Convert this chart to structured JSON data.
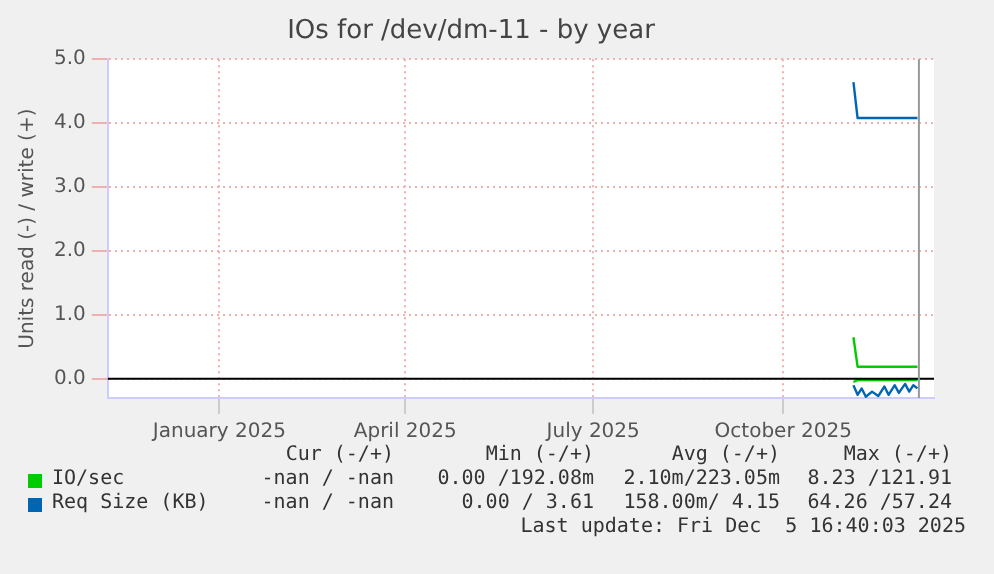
{
  "chart_data": {
    "type": "line",
    "title": "IOs for /dev/dm-11 - by year",
    "ylabel": "Units read (-) / write (+)",
    "xlim": [
      "2024-11-08",
      "2025-12-13"
    ],
    "xticks": [
      {
        "value": "2025-01-01",
        "label": "January 2025"
      },
      {
        "value": "2025-04-01",
        "label": "April 2025"
      },
      {
        "value": "2025-07-01",
        "label": "July 2025"
      },
      {
        "value": "2025-10-01",
        "label": "October 2025"
      }
    ],
    "ylim": [
      -0.3,
      5.0
    ],
    "yticks": [
      {
        "value": 0,
        "label": "0.0"
      },
      {
        "value": 1,
        "label": "1.0"
      },
      {
        "value": 2,
        "label": "2.0"
      },
      {
        "value": 3,
        "label": "3.0"
      },
      {
        "value": 4,
        "label": "4.0"
      },
      {
        "value": 5,
        "label": "5.0"
      }
    ],
    "grid": true,
    "legend": "bottom",
    "marker": "none",
    "line_style": "solid",
    "series": [
      {
        "name": "IO/sec",
        "color": "#00cc00",
        "x": [
          "2025-11-04",
          "2025-11-06",
          "2025-12-05"
        ],
        "values": [
          0.65,
          0.19,
          0.19
        ]
      },
      {
        "color": "#00cc00",
        "x": [
          "2025-11-04",
          "2025-11-06",
          "2025-12-05"
        ],
        "values": [
          -0.05,
          -0.02,
          -0.02
        ]
      },
      {
        "name": "Req Size (KB)",
        "color": "#0066b3",
        "x": [
          "2025-11-04",
          "2025-11-06",
          "2025-12-05"
        ],
        "values": [
          4.64,
          4.08,
          4.08
        ]
      },
      {
        "color": "#0066b3",
        "x": [
          "2025-11-04",
          "2025-11-06",
          "2025-11-08",
          "2025-11-10",
          "2025-11-13",
          "2025-11-16",
          "2025-11-19",
          "2025-11-21",
          "2025-11-24",
          "2025-11-26",
          "2025-11-29",
          "2025-12-01",
          "2025-12-03",
          "2025-12-05"
        ],
        "values": [
          -0.1,
          -0.25,
          -0.15,
          -0.28,
          -0.2,
          -0.27,
          -0.12,
          -0.25,
          -0.1,
          -0.22,
          -0.08,
          -0.2,
          -0.1,
          -0.15
        ]
      }
    ],
    "ref_lines": [
      {
        "axis": "y",
        "value": 0,
        "color": "#000000"
      },
      {
        "axis": "x",
        "value": "2025-12-05T16:40",
        "color": "#999999"
      }
    ],
    "annotations": [
      "Cur (-/+)",
      "Min (-/+)",
      "Avg (-/+)",
      "Max (-/+)",
      "-nan / -nan",
      "0.00 /192.08m",
      "2.10m/223.05m",
      "8.23 /121.91",
      "-nan / -nan",
      "0.00 / 3.61",
      "158.00m/ 4.15",
      "64.26 /57.24",
      "Last update: Fri Dec  5 16:40:03 2025"
    ]
  }
}
